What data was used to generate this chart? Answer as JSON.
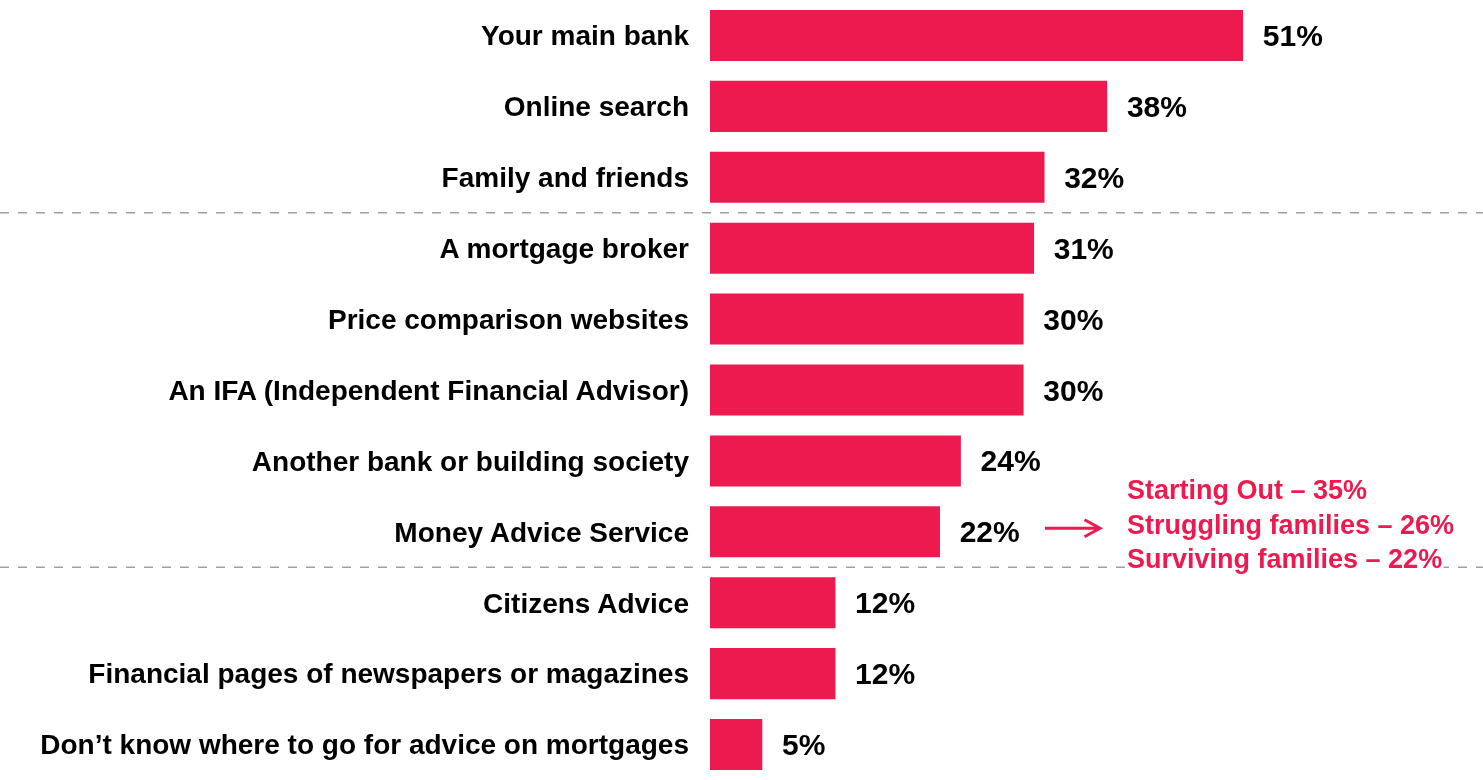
{
  "chart_data": {
    "type": "bar",
    "orientation": "horizontal",
    "categories": [
      "Your main bank",
      "Online search",
      "Family and friends",
      "A mortgage broker",
      "Price comparison websites",
      "An IFA (Independent Financial Advisor)",
      "Another bank or building society",
      "Money Advice Service",
      "Citizens Advice",
      "Financial pages of newspapers or magazines",
      "Don’t know where to go for advice on mortgages"
    ],
    "values": [
      51,
      38,
      32,
      31,
      30,
      30,
      24,
      22,
      12,
      12,
      5
    ],
    "value_labels": [
      "51%",
      "38%",
      "32%",
      "31%",
      "30%",
      "30%",
      "24%",
      "22%",
      "12%",
      "12%",
      "5%"
    ],
    "color": "#ec1a4f",
    "annotations": [
      "Starting Out – 35%",
      "Struggling families – 26%",
      "Surviving families – 22%"
    ]
  }
}
